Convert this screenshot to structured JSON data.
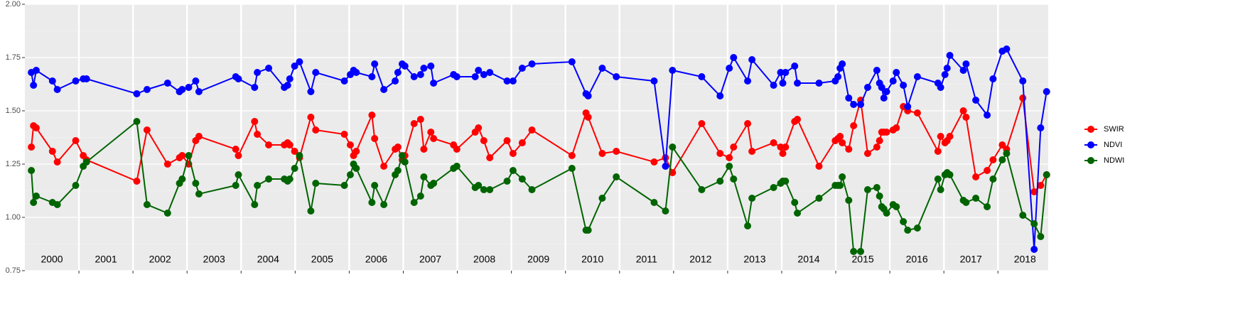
{
  "chart_data": {
    "type": "line",
    "x": [
      2000.12,
      2000.16,
      2000.21,
      2000.51,
      2000.6,
      2000.94,
      2001.08,
      2001.14,
      2002.07,
      2002.26,
      2002.64,
      2002.86,
      2002.91,
      2003.03,
      2003.16,
      2003.22,
      2003.9,
      2003.95,
      2004.25,
      2004.3,
      2004.51,
      2004.8,
      2004.86,
      2004.9,
      2004.99,
      2005.08,
      2005.29,
      2005.38,
      2005.91,
      2006.02,
      2006.08,
      2006.13,
      2006.42,
      2006.47,
      2006.64,
      2006.85,
      2006.9,
      2006.98,
      2007.03,
      2007.2,
      2007.32,
      2007.38,
      2007.51,
      2007.56,
      2007.93,
      2007.99,
      2008.33,
      2008.39,
      2008.49,
      2008.6,
      2008.92,
      2009.03,
      2009.2,
      2009.38,
      2010.12,
      2010.38,
      2010.42,
      2010.68,
      2010.94,
      2011.64,
      2011.85,
      2011.98,
      2012.52,
      2012.86,
      2013.03,
      2013.11,
      2013.37,
      2013.45,
      2013.85,
      2013.98,
      2014.02,
      2014.07,
      2014.24,
      2014.29,
      2014.69,
      2014.99,
      2015.04,
      2015.08,
      2015.12,
      2015.24,
      2015.33,
      2015.46,
      2015.59,
      2015.76,
      2015.81,
      2015.85,
      2015.89,
      2015.94,
      2016.06,
      2016.12,
      2016.25,
      2016.33,
      2016.51,
      2016.89,
      2016.94,
      2017.02,
      2017.06,
      2017.11,
      2017.36,
      2017.41,
      2017.59,
      2017.8,
      2017.91,
      2018.08,
      2018.16,
      2018.46,
      2018.67,
      2018.79,
      2018.9
    ],
    "series": [
      {
        "name": "SWIR",
        "color": "#ff0000",
        "values": [
          1.33,
          1.43,
          1.42,
          1.31,
          1.26,
          1.36,
          1.29,
          1.27,
          1.17,
          1.41,
          1.25,
          1.28,
          1.29,
          1.25,
          1.36,
          1.38,
          1.32,
          1.29,
          1.45,
          1.39,
          1.34,
          1.34,
          1.35,
          1.34,
          1.31,
          1.28,
          1.47,
          1.41,
          1.39,
          1.34,
          1.29,
          1.31,
          1.48,
          1.37,
          1.24,
          1.32,
          1.33,
          1.27,
          1.29,
          1.44,
          1.46,
          1.32,
          1.4,
          1.37,
          1.34,
          1.32,
          1.4,
          1.42,
          1.36,
          1.28,
          1.36,
          1.3,
          1.35,
          1.41,
          1.29,
          1.49,
          1.47,
          1.3,
          1.31,
          1.26,
          1.28,
          1.21,
          1.44,
          1.3,
          1.28,
          1.33,
          1.44,
          1.31,
          1.35,
          1.33,
          1.3,
          1.33,
          1.45,
          1.46,
          1.24,
          1.36,
          1.37,
          1.38,
          1.35,
          1.32,
          1.43,
          1.55,
          1.3,
          1.33,
          1.36,
          1.4,
          1.4,
          1.4,
          1.41,
          1.42,
          1.52,
          1.5,
          1.49,
          1.31,
          1.38,
          1.35,
          1.36,
          1.38,
          1.5,
          1.47,
          1.19,
          1.22,
          1.27,
          1.34,
          1.32,
          1.56,
          1.12,
          1.15,
          1.2
        ]
      },
      {
        "name": "NDVI",
        "color": "#0000ff",
        "values": [
          1.68,
          1.62,
          1.69,
          1.64,
          1.6,
          1.64,
          1.65,
          1.65,
          1.58,
          1.6,
          1.63,
          1.59,
          1.6,
          1.61,
          1.64,
          1.59,
          1.66,
          1.65,
          1.61,
          1.68,
          1.7,
          1.61,
          1.62,
          1.65,
          1.71,
          1.73,
          1.59,
          1.68,
          1.64,
          1.67,
          1.69,
          1.68,
          1.66,
          1.72,
          1.6,
          1.64,
          1.68,
          1.72,
          1.71,
          1.66,
          1.67,
          1.7,
          1.71,
          1.63,
          1.67,
          1.66,
          1.66,
          1.69,
          1.67,
          1.68,
          1.64,
          1.64,
          1.7,
          1.72,
          1.73,
          1.58,
          1.57,
          1.7,
          1.66,
          1.64,
          1.24,
          1.69,
          1.66,
          1.57,
          1.7,
          1.75,
          1.64,
          1.74,
          1.62,
          1.68,
          1.63,
          1.68,
          1.71,
          1.63,
          1.63,
          1.64,
          1.66,
          1.7,
          1.72,
          1.56,
          1.53,
          1.53,
          1.61,
          1.69,
          1.63,
          1.61,
          1.56,
          1.59,
          1.64,
          1.68,
          1.62,
          1.52,
          1.66,
          1.63,
          1.61,
          1.67,
          1.7,
          1.76,
          1.69,
          1.72,
          1.55,
          1.48,
          1.65,
          1.78,
          1.79,
          1.64,
          0.85,
          1.42,
          1.59
        ]
      },
      {
        "name": "NDWI",
        "color": "#006400",
        "values": [
          1.22,
          1.07,
          1.1,
          1.07,
          1.06,
          1.15,
          1.24,
          1.26,
          1.45,
          1.06,
          1.02,
          1.16,
          1.18,
          1.29,
          1.16,
          1.11,
          1.15,
          1.2,
          1.06,
          1.15,
          1.18,
          1.18,
          1.17,
          1.18,
          1.23,
          1.29,
          1.03,
          1.16,
          1.15,
          1.2,
          1.25,
          1.23,
          1.07,
          1.15,
          1.06,
          1.2,
          1.22,
          1.29,
          1.26,
          1.07,
          1.1,
          1.19,
          1.15,
          1.16,
          1.23,
          1.24,
          1.14,
          1.15,
          1.13,
          1.13,
          1.17,
          1.22,
          1.18,
          1.13,
          1.23,
          0.94,
          0.94,
          1.09,
          1.19,
          1.07,
          1.03,
          1.33,
          1.13,
          1.17,
          1.24,
          1.18,
          0.96,
          1.09,
          1.14,
          1.16,
          1.17,
          1.17,
          1.07,
          1.02,
          1.09,
          1.15,
          1.15,
          1.15,
          1.19,
          1.08,
          0.84,
          0.84,
          1.13,
          1.14,
          1.1,
          1.05,
          1.04,
          1.02,
          1.06,
          1.05,
          0.98,
          0.94,
          0.95,
          1.18,
          1.13,
          1.2,
          1.21,
          1.2,
          1.08,
          1.07,
          1.09,
          1.05,
          1.18,
          1.27,
          1.3,
          1.01,
          0.97,
          0.91,
          1.2
        ]
      }
    ],
    "xlim": [
      2000.0,
      2018.93
    ],
    "xticks": [
      {
        "value": 2000.5,
        "label": "2000"
      },
      {
        "value": 2001.5,
        "label": "2001"
      },
      {
        "value": 2002.5,
        "label": "2002"
      },
      {
        "value": 2003.5,
        "label": "2003"
      },
      {
        "value": 2004.5,
        "label": "2004"
      },
      {
        "value": 2005.5,
        "label": "2005"
      },
      {
        "value": 2006.5,
        "label": "2006"
      },
      {
        "value": 2007.5,
        "label": "2007"
      },
      {
        "value": 2008.5,
        "label": "2008"
      },
      {
        "value": 2009.5,
        "label": "2009"
      },
      {
        "value": 2010.5,
        "label": "2010"
      },
      {
        "value": 2011.5,
        "label": "2011"
      },
      {
        "value": 2012.5,
        "label": "2012"
      },
      {
        "value": 2013.5,
        "label": "2013"
      },
      {
        "value": 2014.5,
        "label": "2014"
      },
      {
        "value": 2015.5,
        "label": "2015"
      },
      {
        "value": 2016.5,
        "label": "2016"
      },
      {
        "value": 2017.5,
        "label": "2017"
      },
      {
        "value": 2018.5,
        "label": "2018"
      }
    ],
    "x_separators": [
      2001,
      2002,
      2003,
      2004,
      2005,
      2006,
      2007,
      2008,
      2009,
      2010,
      2011,
      2012,
      2013,
      2014,
      2015,
      2016,
      2017,
      2018
    ],
    "ylim": [
      0.75,
      2.0
    ],
    "yticks": [
      {
        "value": 0.75,
        "label": "0.75"
      },
      {
        "value": 1.0,
        "label": "1.00"
      },
      {
        "value": 1.25,
        "label": "1.25"
      },
      {
        "value": 1.5,
        "label": "1.50"
      },
      {
        "value": 1.75,
        "label": "1.75"
      },
      {
        "value": 2.0,
        "label": "2.00"
      }
    ],
    "y_minor_grid": [
      0.875,
      1.125,
      1.375,
      1.625,
      1.875
    ],
    "grid": true,
    "legend": "right"
  }
}
